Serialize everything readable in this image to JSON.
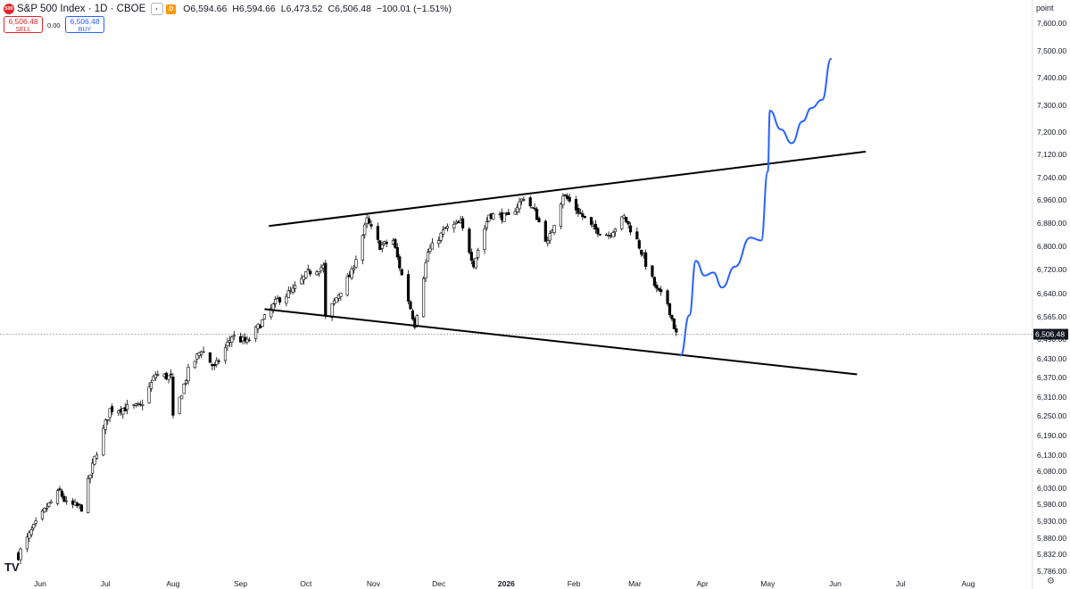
{
  "header": {
    "logo_text": "500",
    "symbol_title": "S&P 500 Index · 1D · CBOE",
    "market_icon": "market-status-icon",
    "d_icon_text": "D",
    "ohlc": [
      {
        "k": "O",
        "v": "6,594.66"
      },
      {
        "k": "H",
        "v": "6,594.66"
      },
      {
        "k": "L",
        "v": "6,473.52"
      },
      {
        "k": "C",
        "v": "6,506.48"
      }
    ],
    "change": "−100.01 (−1.51%)",
    "sell_price": "6,506.48",
    "sell_label": "SELL",
    "spread": "0.00",
    "buy_price": "6,506.48",
    "buy_label": "BUY"
  },
  "axis_unit": "point",
  "watermark": "TV",
  "colors": {
    "candle": "#000000",
    "trendline": "#000000",
    "projection": "#2962ff",
    "sell": "#e0262c",
    "buy": "#2962ff",
    "last_price_bg": "#131722"
  },
  "chart_data": {
    "type": "candlestick",
    "title": "S&P 500 Index · 1D · CBOE",
    "y_ticks": [
      7600,
      7500,
      7400,
      7300,
      7200,
      7120,
      7040,
      6960,
      6880,
      6800,
      6720,
      6640,
      6565,
      6490,
      6430,
      6370,
      6310,
      6250,
      6190,
      6130,
      6080,
      6030,
      5980,
      5930,
      5880,
      5832,
      5786
    ],
    "y_tick_labels": [
      "7,600.00",
      "7,500.00",
      "7,400.00",
      "7,300.00",
      "7,200.00",
      "7,120.00",
      "7,040.00",
      "6,960.00",
      "6,880.00",
      "6,800.00",
      "6,720.00",
      "6,640.00",
      "6,565.00",
      "6,490.00",
      "6,430.00",
      "6,370.00",
      "6,310.00",
      "6,250.00",
      "6,190.00",
      "6,130.00",
      "6,080.00",
      "6,030.00",
      "5,980.00",
      "5,930.00",
      "5,880.00",
      "5,832.00",
      "5,786.00"
    ],
    "x_ticks": [
      {
        "label": "Jun",
        "date": "2025-06-01",
        "bold": false
      },
      {
        "label": "Jul",
        "date": "2025-07-01",
        "bold": false
      },
      {
        "label": "Aug",
        "date": "2025-08-01",
        "bold": false
      },
      {
        "label": "Sep",
        "date": "2025-09-01",
        "bold": false
      },
      {
        "label": "Oct",
        "date": "2025-10-01",
        "bold": false
      },
      {
        "label": "Nov",
        "date": "2025-11-01",
        "bold": false
      },
      {
        "label": "Dec",
        "date": "2025-12-01",
        "bold": false
      },
      {
        "label": "2026",
        "date": "2026-01-01",
        "bold": true
      },
      {
        "label": "Feb",
        "date": "2026-02-01",
        "bold": false
      },
      {
        "label": "Mar",
        "date": "2026-03-01",
        "bold": false
      },
      {
        "label": "Apr",
        "date": "2026-04-01",
        "bold": false
      },
      {
        "label": "May",
        "date": "2026-05-01",
        "bold": false
      },
      {
        "label": "Jun",
        "date": "2026-06-01",
        "bold": false
      },
      {
        "label": "Jul",
        "date": "2026-07-01",
        "bold": false
      },
      {
        "label": "Aug",
        "date": "2026-08-01",
        "bold": false
      }
    ],
    "last_price": 6506.48,
    "last_price_label": "6,506.48",
    "close_path": [
      [
        "2025-05-22",
        5830
      ],
      [
        "2025-05-28",
        5900
      ],
      [
        "2025-06-04",
        5970
      ],
      [
        "2025-06-10",
        6020
      ],
      [
        "2025-06-13",
        5980
      ],
      [
        "2025-06-20",
        5970
      ],
      [
        "2025-06-26",
        6120
      ],
      [
        "2025-07-03",
        6270
      ],
      [
        "2025-07-10",
        6275
      ],
      [
        "2025-07-17",
        6280
      ],
      [
        "2025-07-24",
        6380
      ],
      [
        "2025-07-31",
        6370
      ],
      [
        "2025-08-01",
        6240
      ],
      [
        "2025-08-08",
        6390
      ],
      [
        "2025-08-14",
        6460
      ],
      [
        "2025-08-20",
        6400
      ],
      [
        "2025-08-28",
        6500
      ],
      [
        "2025-09-04",
        6480
      ],
      [
        "2025-09-10",
        6540
      ],
      [
        "2025-09-18",
        6620
      ],
      [
        "2025-09-25",
        6650
      ],
      [
        "2025-10-02",
        6710
      ],
      [
        "2025-10-09",
        6730
      ],
      [
        "2025-10-10",
        6560
      ],
      [
        "2025-10-16",
        6640
      ],
      [
        "2025-10-22",
        6710
      ],
      [
        "2025-10-29",
        6890
      ],
      [
        "2025-11-04",
        6800
      ],
      [
        "2025-11-10",
        6820
      ],
      [
        "2025-11-14",
        6700
      ],
      [
        "2025-11-20",
        6540
      ],
      [
        "2025-11-26",
        6780
      ],
      [
        "2025-12-04",
        6860
      ],
      [
        "2025-12-11",
        6880
      ],
      [
        "2025-12-17",
        6740
      ],
      [
        "2025-12-24",
        6910
      ],
      [
        "2026-01-02",
        6900
      ],
      [
        "2026-01-09",
        6970
      ],
      [
        "2026-01-14",
        6920
      ],
      [
        "2026-01-20",
        6810
      ],
      [
        "2026-01-27",
        6980
      ],
      [
        "2026-02-03",
        6920
      ],
      [
        "2026-02-10",
        6860
      ],
      [
        "2026-02-17",
        6840
      ],
      [
        "2026-02-24",
        6900
      ],
      [
        "2026-03-02",
        6820
      ],
      [
        "2026-03-06",
        6740
      ],
      [
        "2026-03-11",
        6650
      ],
      [
        "2026-03-16",
        6610
      ],
      [
        "2026-03-20",
        6506.48
      ]
    ],
    "trendlines": [
      {
        "name": "upper",
        "from": [
          "2025-09-14",
          6870
        ],
        "to": [
          "2026-06-15",
          7130
        ]
      },
      {
        "name": "lower",
        "from": [
          "2025-09-12",
          6590
        ],
        "to": [
          "2026-06-11",
          6380
        ]
      }
    ],
    "projection": [
      [
        "2026-03-22",
        6440
      ],
      [
        "2026-03-26",
        6570
      ],
      [
        "2026-03-29",
        6750
      ],
      [
        "2026-04-02",
        6700
      ],
      [
        "2026-04-06",
        6710
      ],
      [
        "2026-04-10",
        6660
      ],
      [
        "2026-04-16",
        6730
      ],
      [
        "2026-04-23",
        6830
      ],
      [
        "2026-04-28",
        6820
      ],
      [
        "2026-05-01",
        7060
      ],
      [
        "2026-05-02",
        7280
      ],
      [
        "2026-05-07",
        7210
      ],
      [
        "2026-05-12",
        7160
      ],
      [
        "2026-05-17",
        7240
      ],
      [
        "2026-05-21",
        7290
      ],
      [
        "2026-05-26",
        7320
      ],
      [
        "2026-05-30",
        7470
      ]
    ],
    "xlabel": "",
    "ylabel": "",
    "grid": false,
    "legend": "none"
  }
}
